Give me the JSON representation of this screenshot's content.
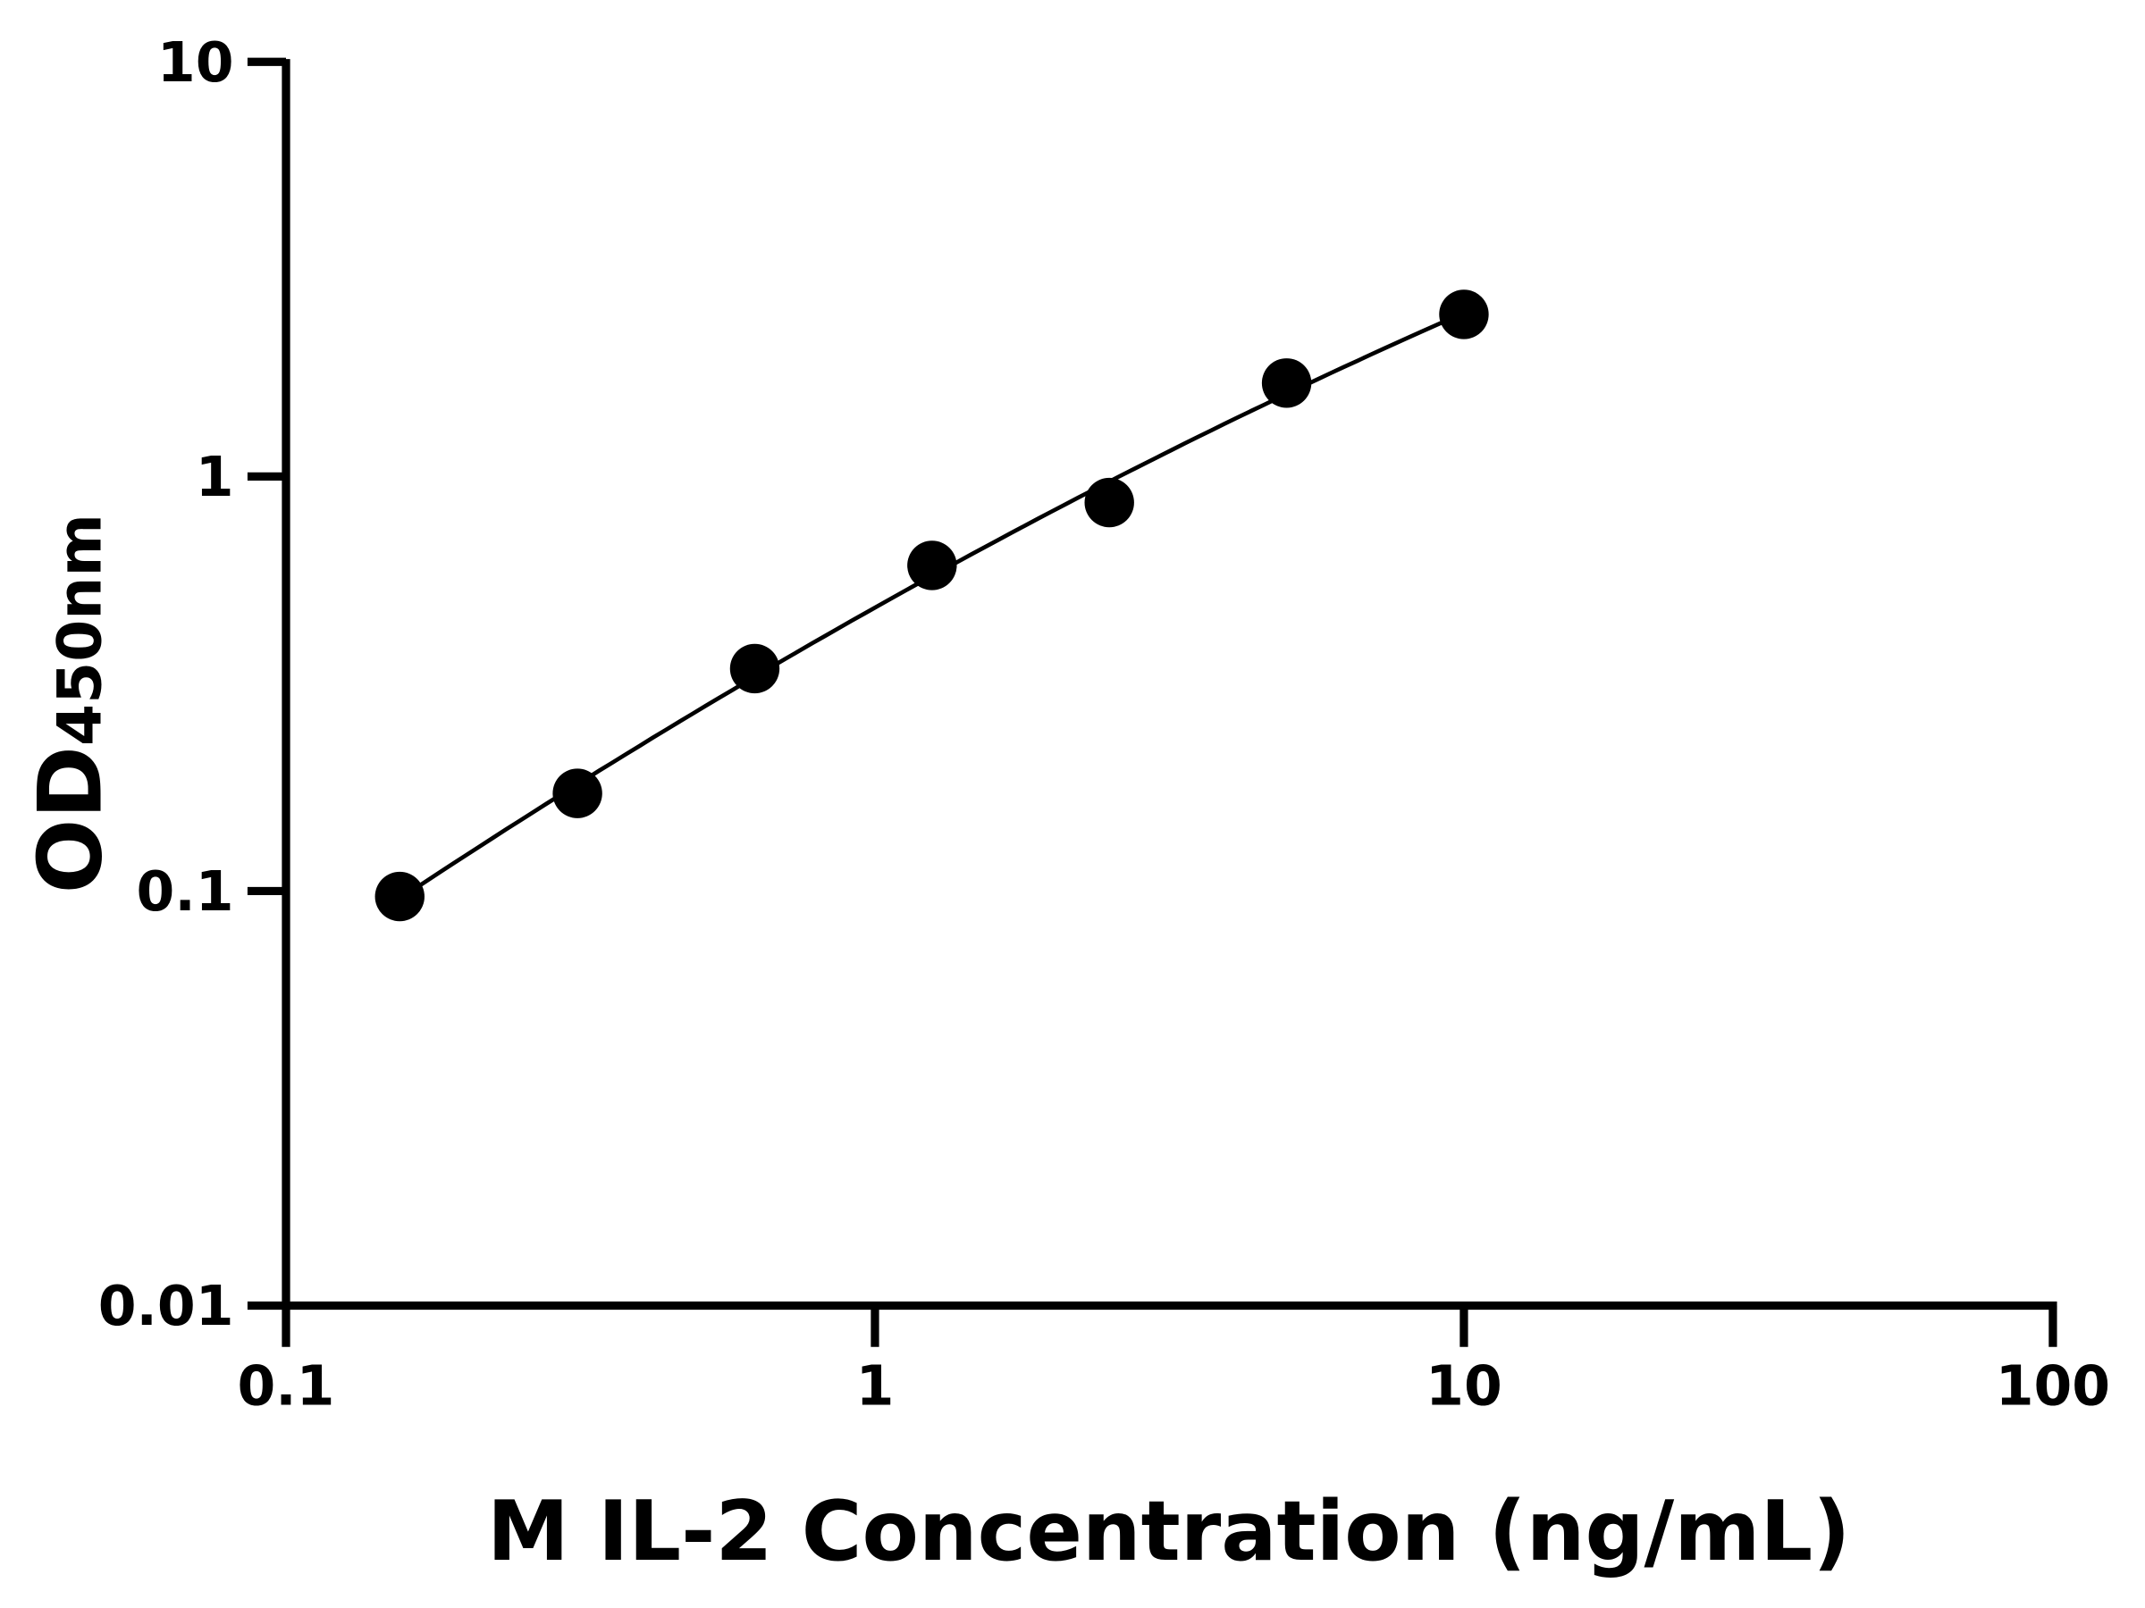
{
  "chart_data": {
    "type": "scatter",
    "title": "",
    "xlabel": "M IL-2 Concentration (ng/mL)",
    "ylabel_main": "OD",
    "ylabel_sub": "450nm",
    "x_scale": "log",
    "y_scale": "log",
    "xlim": [
      0.1,
      100
    ],
    "ylim": [
      0.01,
      10
    ],
    "x_ticks": [
      0.1,
      1,
      10,
      100
    ],
    "x_tick_labels": [
      "0.1",
      "1",
      "10",
      "100"
    ],
    "y_ticks": [
      0.01,
      0.1,
      1,
      10
    ],
    "y_tick_labels": [
      "0.01",
      "0.1",
      "1",
      "10"
    ],
    "grid": false,
    "fit_curve": true,
    "color": "#000000",
    "points": [
      {
        "x": 0.156,
        "y": 0.097
      },
      {
        "x": 0.3125,
        "y": 0.172
      },
      {
        "x": 0.625,
        "y": 0.344
      },
      {
        "x": 1.25,
        "y": 0.61
      },
      {
        "x": 2.5,
        "y": 0.865
      },
      {
        "x": 5,
        "y": 1.68
      },
      {
        "x": 10,
        "y": 2.46
      }
    ]
  }
}
